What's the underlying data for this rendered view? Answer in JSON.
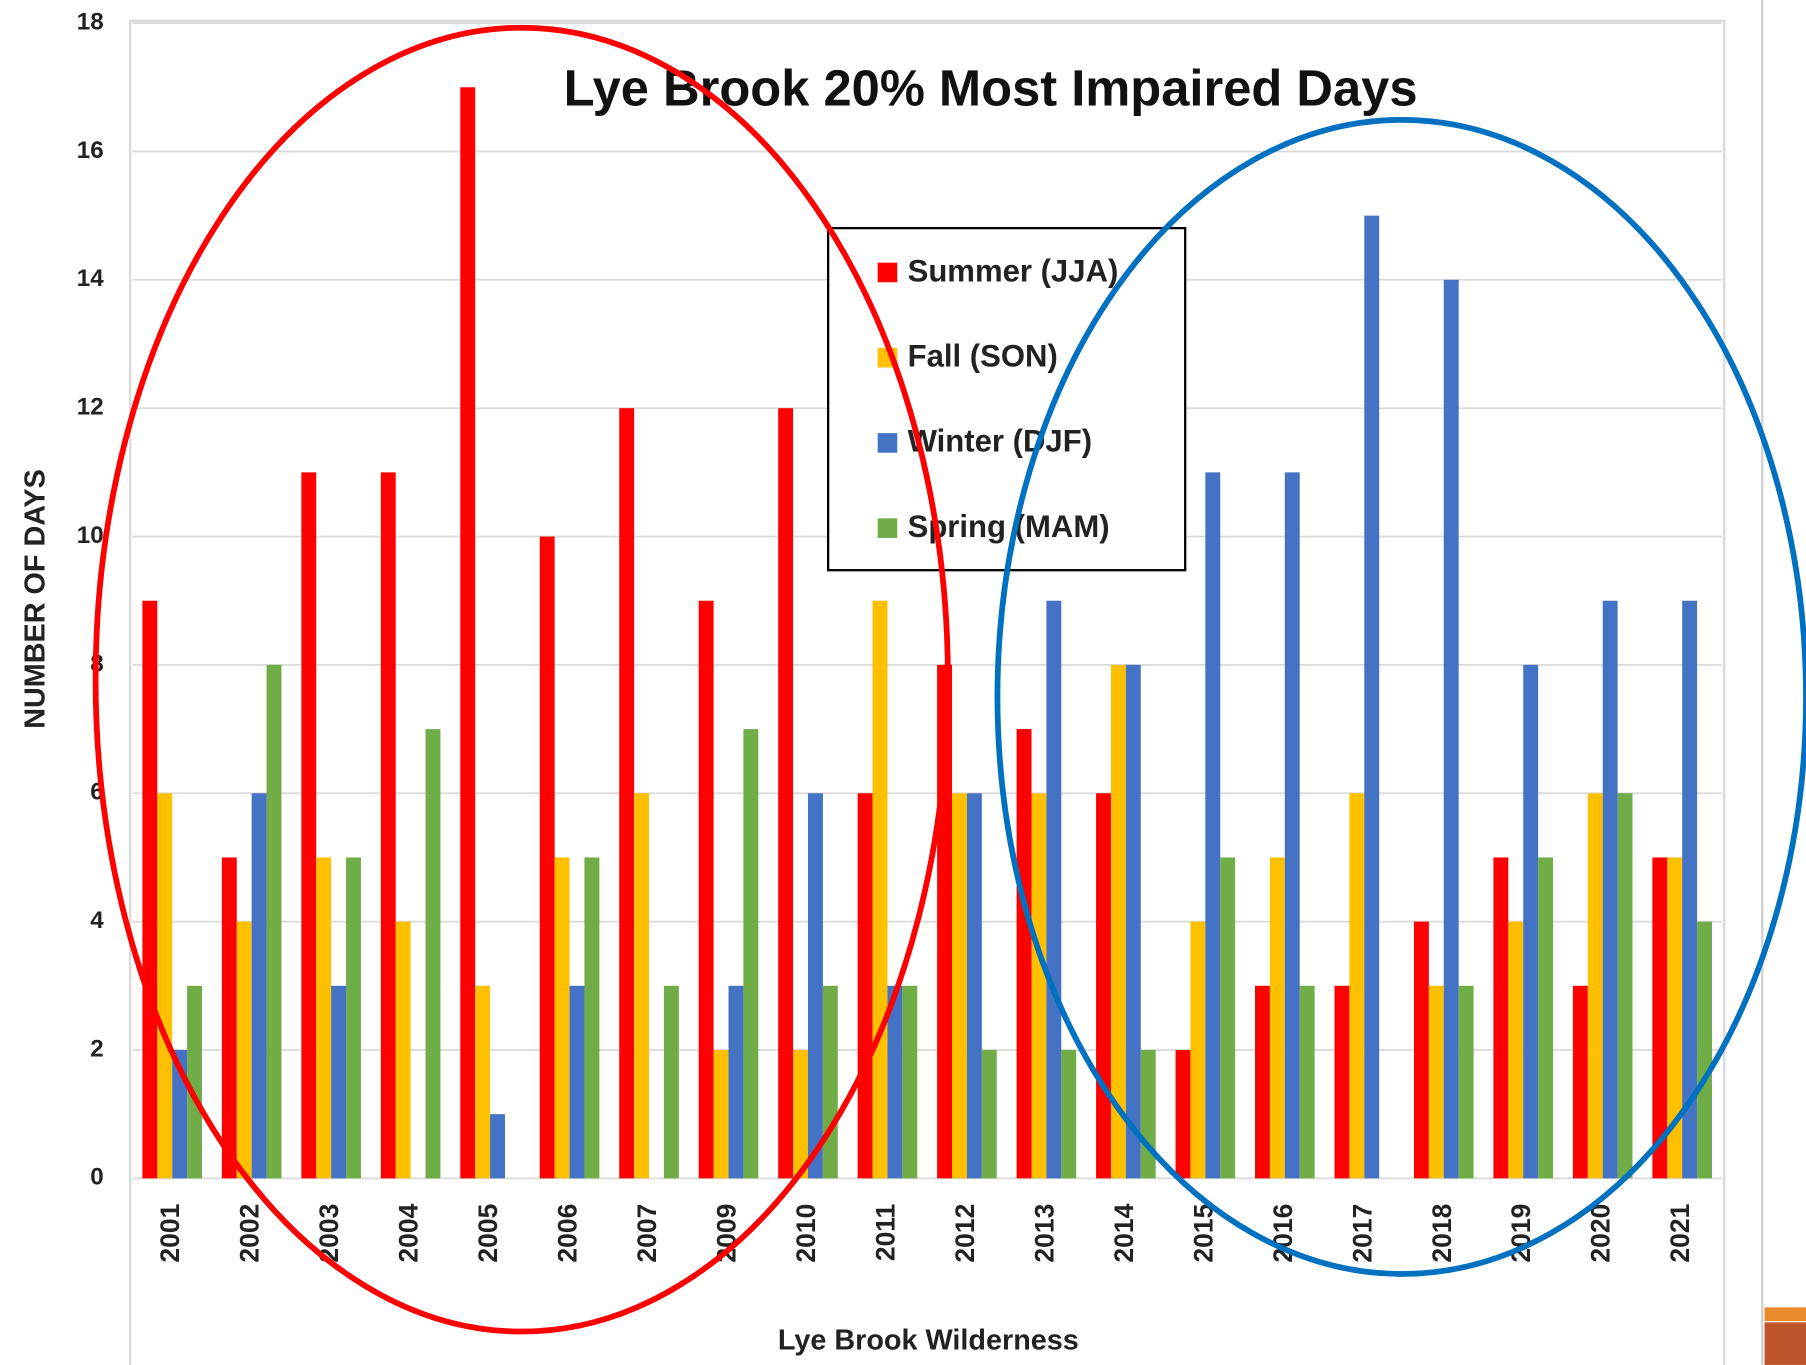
{
  "chart_data": {
    "type": "bar",
    "title": "Lye Brook 20% Most Impaired Days",
    "x_label": "Lye Brook Wilderness",
    "y_label": "NUMBER OF DAYS",
    "categories": [
      "2001",
      "2002",
      "2003",
      "2004",
      "2005",
      "2006",
      "2007",
      "2009",
      "2010",
      "2011",
      "2012",
      "2013",
      "2014",
      "2015",
      "2016",
      "2017",
      "2018",
      "2019",
      "2020",
      "2021"
    ],
    "series": [
      {
        "name": "Summer (JJA)",
        "color": "#ff0000",
        "values": [
          9,
          5,
          11,
          11,
          17,
          10,
          12,
          9,
          12,
          6,
          8,
          7,
          6,
          2,
          3,
          3,
          4,
          5,
          3,
          5
        ]
      },
      {
        "name": "Fall (SON)",
        "color": "#ffc000",
        "values": [
          6,
          4,
          5,
          4,
          3,
          5,
          6,
          2,
          2,
          9,
          6,
          6,
          8,
          4,
          5,
          6,
          3,
          4,
          6,
          5
        ]
      },
      {
        "name": "Winter (DJF)",
        "color": "#4472c4",
        "values": [
          2,
          6,
          3,
          0,
          1,
          3,
          0,
          3,
          6,
          3,
          6,
          9,
          8,
          11,
          11,
          15,
          14,
          8,
          9,
          9
        ]
      },
      {
        "name": "Spring (MAM)",
        "color": "#70ad47",
        "values": [
          3,
          8,
          5,
          7,
          0,
          5,
          3,
          7,
          3,
          3,
          2,
          2,
          2,
          5,
          3,
          0,
          3,
          5,
          6,
          4
        ]
      }
    ],
    "ylim": [
      0,
      18
    ],
    "yticks": [
      0,
      2,
      4,
      6,
      8,
      10,
      12,
      14,
      16,
      18
    ],
    "grid": true
  }
}
